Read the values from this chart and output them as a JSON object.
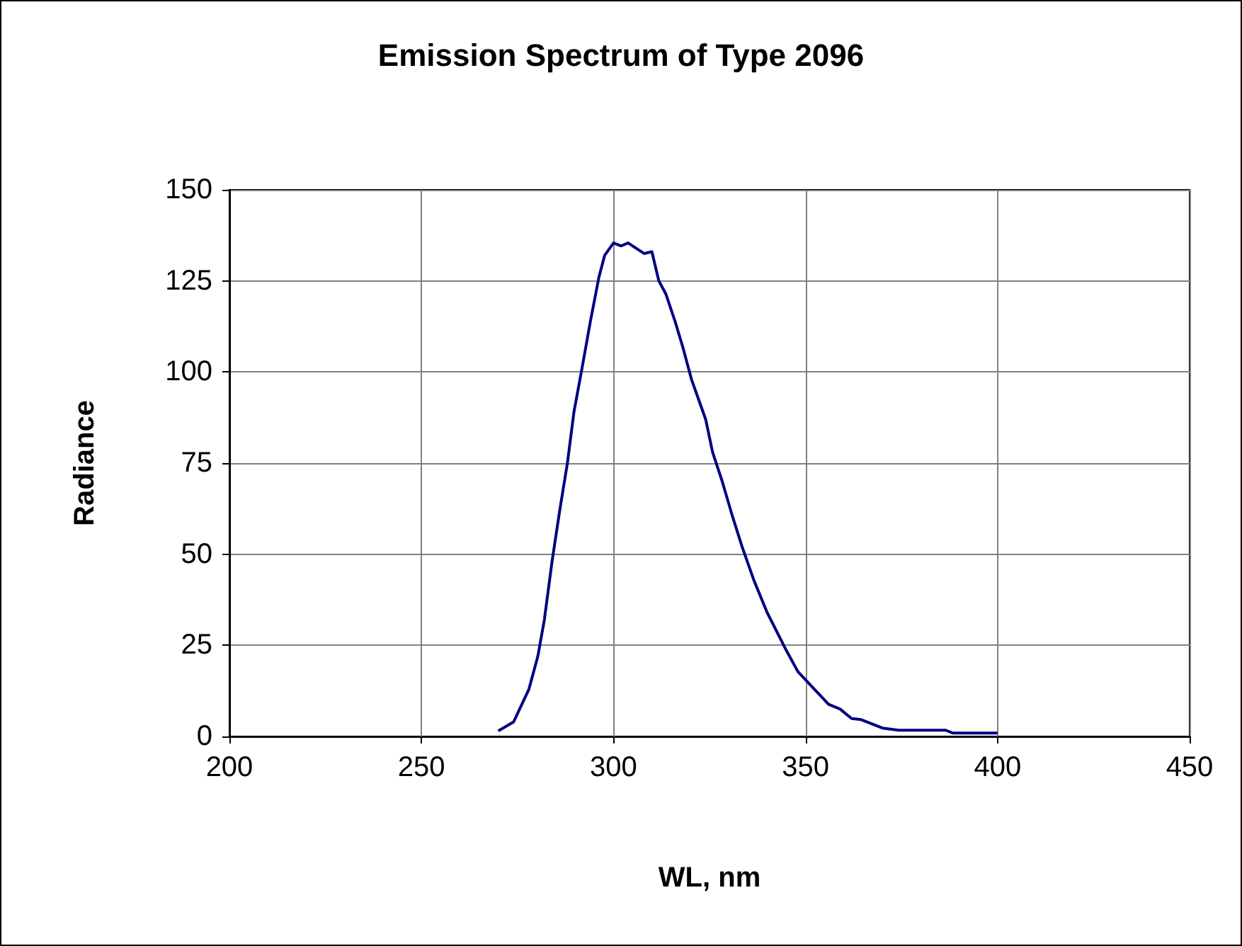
{
  "chart_data": {
    "type": "line",
    "title": "Emission Spectrum of Type 2096",
    "xlabel": "WL, nm",
    "ylabel": "Radiance",
    "xlim": [
      200,
      450
    ],
    "xticks": [
      200,
      250,
      300,
      350,
      400,
      450
    ],
    "ylim": [
      0,
      150
    ],
    "yticks": [
      0,
      25,
      50,
      75,
      100,
      125,
      150
    ],
    "grid": true,
    "marker": "none",
    "line_style": "solid",
    "series": [
      {
        "color": "#000080",
        "x": [
          270,
          274,
          278,
          280.3,
          282,
          284,
          286,
          288,
          289.7,
          291.8,
          294,
          296.2,
          297.7,
          300,
          302,
          303.8,
          308,
          310,
          311.8,
          313.6,
          316,
          318,
          320.3,
          324,
          325.8,
          328.3,
          330.8,
          333.5,
          336.5,
          340,
          345,
          348,
          352,
          356,
          359,
          362,
          364.5,
          370,
          374.3,
          386.5,
          388.4,
          400
        ],
        "values": [
          1.5,
          4,
          13,
          22,
          32,
          48,
          62,
          75,
          89,
          101,
          114,
          126,
          132,
          135.4,
          134.6,
          135.4,
          132.5,
          133,
          125,
          121.5,
          114,
          107,
          98,
          87,
          78,
          70,
          61,
          52,
          43,
          34,
          23.6,
          17.8,
          13.3,
          8.8,
          7.5,
          4.9,
          4.6,
          2.3,
          1.7,
          1.7,
          0.9,
          0.9
        ]
      }
    ]
  }
}
